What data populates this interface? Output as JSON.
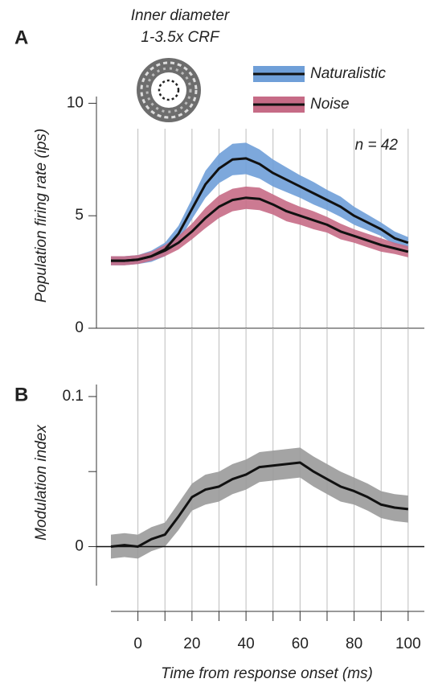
{
  "chart_data": [
    {
      "type": "band-line",
      "panel_label": "A",
      "annotation": [
        "Inner diameter",
        "1-3.5x CRF"
      ],
      "note": "n = 42",
      "ylabel": "Population firing rate (ips)",
      "x": [
        -10,
        -5,
        0,
        5,
        10,
        15,
        20,
        25,
        30,
        35,
        40,
        45,
        50,
        55,
        60,
        65,
        70,
        75,
        80,
        85,
        90,
        95,
        100
      ],
      "series": [
        {
          "name": "Naturalistic",
          "color": "#6f9fd8",
          "values": [
            3.0,
            3.0,
            3.05,
            3.2,
            3.5,
            4.2,
            5.3,
            6.4,
            7.1,
            7.5,
            7.55,
            7.3,
            6.9,
            6.6,
            6.3,
            6.0,
            5.7,
            5.4,
            5.0,
            4.7,
            4.4,
            4.0,
            3.8
          ],
          "errors": [
            0.2,
            0.2,
            0.2,
            0.25,
            0.3,
            0.35,
            0.45,
            0.6,
            0.65,
            0.7,
            0.7,
            0.65,
            0.6,
            0.55,
            0.5,
            0.5,
            0.45,
            0.45,
            0.4,
            0.35,
            0.3,
            0.3,
            0.25
          ]
        },
        {
          "name": "Noise",
          "color": "#c66b86",
          "values": [
            3.0,
            3.0,
            3.05,
            3.2,
            3.45,
            3.8,
            4.3,
            4.9,
            5.4,
            5.7,
            5.8,
            5.75,
            5.5,
            5.2,
            5.0,
            4.8,
            4.6,
            4.3,
            4.1,
            3.9,
            3.7,
            3.55,
            3.4
          ],
          "errors": [
            0.2,
            0.2,
            0.2,
            0.2,
            0.25,
            0.3,
            0.35,
            0.45,
            0.5,
            0.5,
            0.5,
            0.5,
            0.45,
            0.45,
            0.4,
            0.4,
            0.35,
            0.35,
            0.3,
            0.3,
            0.3,
            0.25,
            0.25
          ]
        }
      ],
      "xlim": [
        -10,
        106
      ],
      "xgrid": [
        0,
        10,
        20,
        30,
        40,
        50,
        60,
        70,
        80,
        90,
        100
      ],
      "ylim": [
        0,
        10.3
      ],
      "yticks": [
        0,
        5,
        10
      ]
    },
    {
      "type": "band-line",
      "panel_label": "B",
      "ylabel": "Modulation index",
      "xlabel": "Time from response onset (ms)",
      "x": [
        -10,
        -5,
        0,
        5,
        10,
        15,
        20,
        25,
        30,
        35,
        40,
        45,
        50,
        55,
        60,
        65,
        70,
        75,
        80,
        85,
        90,
        95,
        100
      ],
      "series": [
        {
          "color": "#9a9a9a",
          "values": [
            0.0,
            0.001,
            0.0,
            0.005,
            0.008,
            0.02,
            0.033,
            0.038,
            0.04,
            0.045,
            0.048,
            0.053,
            0.054,
            0.055,
            0.056,
            0.05,
            0.045,
            0.04,
            0.037,
            0.033,
            0.028,
            0.026,
            0.025
          ],
          "errors": [
            0.008,
            0.008,
            0.008,
            0.008,
            0.008,
            0.009,
            0.009,
            0.01,
            0.01,
            0.01,
            0.01,
            0.01,
            0.01,
            0.01,
            0.01,
            0.01,
            0.01,
            0.01,
            0.009,
            0.009,
            0.009,
            0.009,
            0.009
          ]
        }
      ],
      "xlim": [
        -10,
        106
      ],
      "xticks": [
        0,
        20,
        40,
        60,
        80,
        100
      ],
      "xminorticks": [
        10,
        30,
        50,
        70,
        90
      ],
      "xgrid": [
        0,
        10,
        20,
        30,
        40,
        50,
        60,
        70,
        80,
        90,
        100
      ],
      "ylim": [
        -0.026,
        0.108
      ],
      "yticks": [
        0,
        0.1
      ],
      "yminorticks": [
        0.05
      ],
      "zero_line": true
    }
  ]
}
